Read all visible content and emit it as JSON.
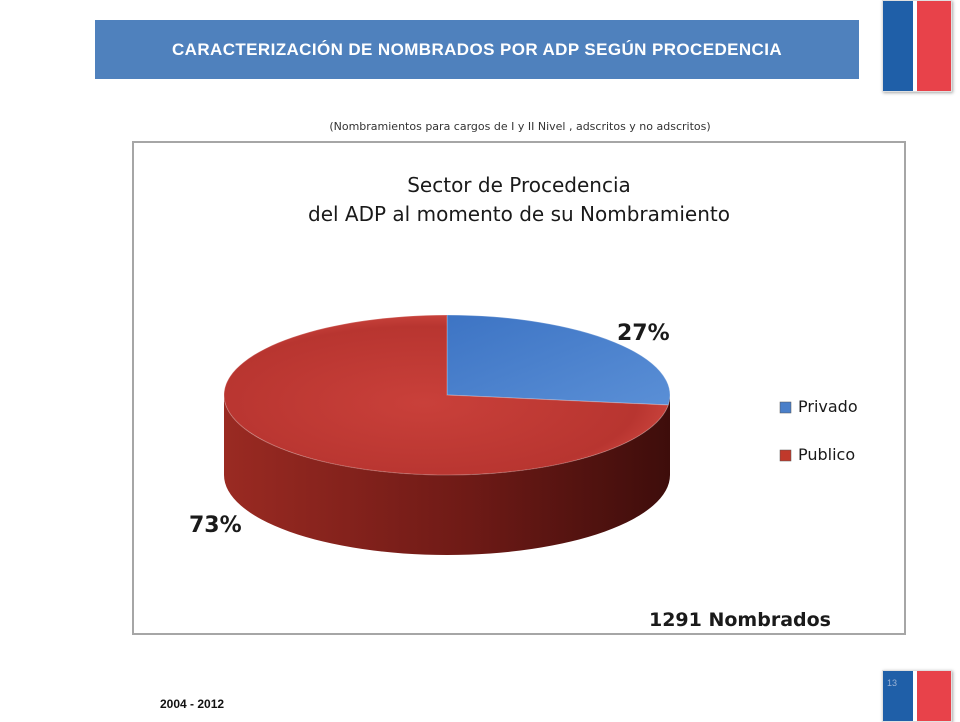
{
  "header": {
    "title": "CARACTERIZACIÓN DE NOMBRADOS POR ADP SEGÚN PROCEDENCIA"
  },
  "subtitle": "(Nombramientos para cargos de I y II Nivel , adscritos y no adscritos)",
  "footer": {
    "years": "2004 - 2012",
    "page_number": "13"
  },
  "colors": {
    "header_bg": "#4f81bd",
    "privado": "#4a7fc9",
    "publico": "#c0392b",
    "flag_blue": "#1f5fa8",
    "flag_red": "#e8424a"
  },
  "chart_data": {
    "type": "pie",
    "title_lines": [
      "Sector de Procedencia",
      "del ADP al momento de su Nombramiento"
    ],
    "categories": [
      "Privado",
      "Publico"
    ],
    "values": [
      27,
      73
    ],
    "value_labels": [
      "27%",
      "73%"
    ],
    "legend_position": "right",
    "annotation": "1291 Nombrados"
  }
}
